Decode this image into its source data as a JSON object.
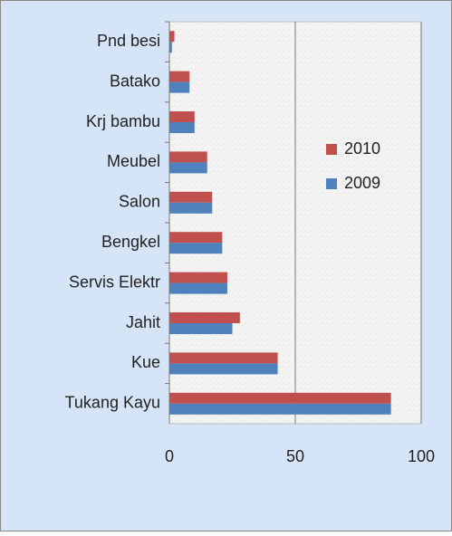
{
  "chart_data": {
    "type": "bar",
    "orientation": "horizontal",
    "categories": [
      "Pnd besi",
      "Batako",
      "Krj bambu",
      "Meubel",
      "Salon",
      "Bengkel",
      "Servis Elektr",
      "Jahit",
      "Kue",
      "Tukang Kayu"
    ],
    "series": [
      {
        "name": "2010",
        "color": "#c0504d",
        "values": [
          2,
          8,
          10,
          15,
          17,
          21,
          23,
          28,
          43,
          88
        ]
      },
      {
        "name": "2009",
        "color": "#4f81bd",
        "values": [
          1,
          8,
          10,
          15,
          17,
          21,
          23,
          25,
          43,
          88
        ]
      }
    ],
    "xlim": [
      0,
      100
    ],
    "xticks": [
      0,
      50,
      100
    ],
    "grid": true,
    "legend": "right"
  }
}
